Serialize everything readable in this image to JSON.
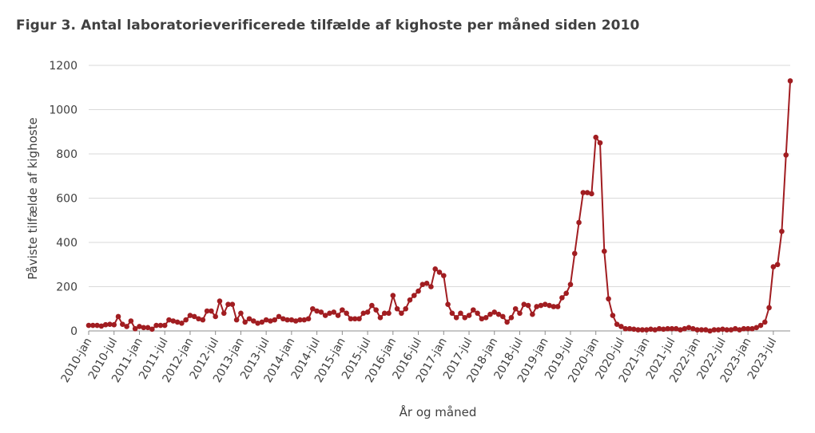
{
  "title": "Figur 3. Antal laboratorieverificerede tilfælde af kighoste per måned siden 2010",
  "colors": {
    "series": "#a11d21",
    "grid": "#d9d9d9",
    "axis": "#8c8c8c",
    "text": "#404040"
  },
  "chart_data": {
    "type": "line",
    "title": "Figur 3. Antal laboratorieverificerede tilfælde af kighoste per måned siden 2010",
    "xlabel": "År og måned",
    "ylabel": "Påviste tilfælde af kighoste",
    "ylim": [
      0,
      1200
    ],
    "yticks": [
      0,
      200,
      400,
      600,
      800,
      1000,
      1200
    ],
    "grid": true,
    "legend": "none",
    "x_tick_labels": [
      "2010-jan",
      "2010-jul",
      "2011-jan",
      "2011-jul",
      "2012-jan",
      "2012-jul",
      "2013-jan",
      "2013-jul",
      "2014-jan",
      "2014-jul",
      "2015-jan",
      "2015-jul",
      "2016-jan",
      "2016-jul",
      "2017-jan",
      "2017-jul",
      "2018-jan",
      "2018-jul",
      "2019-jan",
      "2019-jul",
      "2020-jan",
      "2020-jul",
      "2021-jan",
      "2021-jul",
      "2022-jan",
      "2022-jul",
      "2023-jan",
      "2023-jul"
    ],
    "x_start": "2010-jan",
    "x_end": "2023-oct",
    "series": [
      {
        "values": [
          25,
          25,
          25,
          22,
          28,
          30,
          28,
          65,
          30,
          20,
          45,
          10,
          20,
          15,
          15,
          8,
          25,
          25,
          25,
          50,
          45,
          40,
          35,
          50,
          70,
          65,
          55,
          50,
          90,
          90,
          65,
          135,
          80,
          120,
          120,
          50,
          80,
          40,
          55,
          45,
          35,
          40,
          50,
          45,
          50,
          65,
          55,
          50,
          50,
          45,
          50,
          50,
          55,
          100,
          90,
          85,
          70,
          80,
          85,
          70,
          95,
          80,
          55,
          55,
          55,
          80,
          85,
          115,
          95,
          60,
          80,
          80,
          160,
          100,
          80,
          100,
          140,
          160,
          180,
          210,
          215,
          200,
          280,
          265,
          250,
          120,
          80,
          60,
          80,
          60,
          70,
          95,
          80,
          55,
          60,
          75,
          85,
          75,
          65,
          40,
          60,
          100,
          80,
          120,
          115,
          75,
          110,
          115,
          120,
          115,
          110,
          110,
          150,
          170,
          210,
          350,
          490,
          625,
          625,
          620,
          875,
          850,
          360,
          145,
          70,
          30,
          20,
          10,
          10,
          8,
          5,
          5,
          5,
          8,
          5,
          10,
          8,
          10,
          10,
          10,
          5,
          10,
          15,
          10,
          5,
          5,
          5,
          0,
          5,
          5,
          8,
          5,
          5,
          10,
          5,
          10,
          10,
          10,
          15,
          25,
          40,
          105,
          290,
          300,
          450,
          795,
          1130
        ]
      }
    ]
  }
}
